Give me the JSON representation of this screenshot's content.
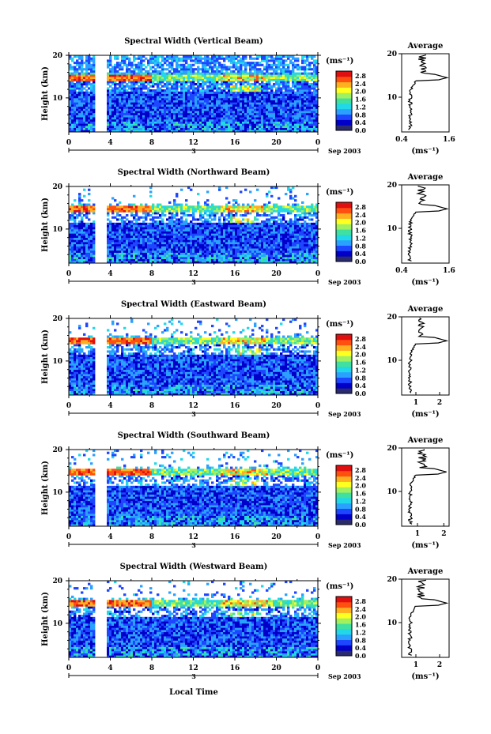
{
  "figure": {
    "time_label": "Local Time",
    "date_label": "Sep 2003",
    "day_label": "3",
    "unit_label": "(ms⁻¹)",
    "average_title": "Average",
    "height_label": "Height (km)"
  },
  "colorbar": {
    "ticks": [
      "2.8",
      "2.4",
      "2.0",
      "1.6",
      "1.2",
      "0.8",
      "0.4",
      "0.0"
    ],
    "colors": [
      "#2a2a6e",
      "#0000c8",
      "#1e46ff",
      "#2aa0ff",
      "#20d8e8",
      "#40e0a0",
      "#a0f060",
      "#ffff20",
      "#ffb020",
      "#ff5010",
      "#e01010"
    ]
  },
  "chart_data": [
    {
      "type": "heatmap",
      "title": "Spectral Width (Vertical Beam)",
      "xlabel": "",
      "ylabel": "Height (km)",
      "x_ticks": [
        "0",
        "4",
        "8",
        "12",
        "16",
        "20",
        "0"
      ],
      "y_ticks": [
        "20",
        "10"
      ],
      "xlim": [
        0,
        24
      ],
      "ylim": [
        2,
        20
      ],
      "colorbar_range": [
        0.0,
        2.8
      ],
      "average_profile": {
        "xlabel": "(ms⁻¹)",
        "x_ticks": [
          "0.4",
          "1.6"
        ],
        "xlim": [
          0.4,
          1.6
        ],
        "peak_height_km": 14.5,
        "peak_value": 1.55
      }
    },
    {
      "type": "heatmap",
      "title": "Spectral Width (Northward Beam)",
      "xlabel": "",
      "ylabel": "Height (km)",
      "x_ticks": [
        "0",
        "4",
        "8",
        "12",
        "16",
        "20",
        "0"
      ],
      "y_ticks": [
        "20",
        "10"
      ],
      "xlim": [
        0,
        24
      ],
      "ylim": [
        2,
        20
      ],
      "colorbar_range": [
        0.0,
        2.8
      ],
      "average_profile": {
        "xlabel": "(ms⁻¹)",
        "x_ticks": [
          "0.4",
          "1.6"
        ],
        "xlim": [
          0.4,
          1.6
        ],
        "peak_height_km": 14.5,
        "peak_value": 1.55
      }
    },
    {
      "type": "heatmap",
      "title": "Spectral Width (Eastward Beam)",
      "xlabel": "",
      "ylabel": "Height (km)",
      "x_ticks": [
        "0",
        "4",
        "8",
        "12",
        "16",
        "20",
        "0"
      ],
      "y_ticks": [
        "20",
        "10"
      ],
      "xlim": [
        0,
        24
      ],
      "ylim": [
        2,
        20
      ],
      "colorbar_range": [
        0.0,
        2.8
      ],
      "average_profile": {
        "xlabel": "(ms⁻¹)",
        "x_ticks": [
          "1",
          "2"
        ],
        "xlim": [
          0.4,
          2.4
        ],
        "peak_height_km": 14.5,
        "peak_value": 2.3
      }
    },
    {
      "type": "heatmap",
      "title": "Spectral Width (Southward Beam)",
      "xlabel": "",
      "ylabel": "Height (km)",
      "x_ticks": [
        "0",
        "4",
        "8",
        "12",
        "16",
        "20",
        "0"
      ],
      "y_ticks": [
        "20",
        "10"
      ],
      "xlim": [
        0,
        24
      ],
      "ylim": [
        2,
        20
      ],
      "colorbar_range": [
        0.0,
        2.8
      ],
      "average_profile": {
        "xlabel": "(ms⁻¹)",
        "x_ticks": [
          "1",
          "2"
        ],
        "xlim": [
          0.4,
          2.2
        ],
        "peak_height_km": 14.5,
        "peak_value": 2.1
      }
    },
    {
      "type": "heatmap",
      "title": "Spectral Width (Westward Beam)",
      "xlabel": "Local Time",
      "ylabel": "Height (km)",
      "x_ticks": [
        "0",
        "4",
        "8",
        "12",
        "16",
        "20",
        "0"
      ],
      "y_ticks": [
        "20",
        "10"
      ],
      "xlim": [
        0,
        24
      ],
      "ylim": [
        2,
        20
      ],
      "colorbar_range": [
        0.0,
        2.8
      ],
      "average_profile": {
        "xlabel": "(ms⁻¹)",
        "x_ticks": [
          "1",
          "2"
        ],
        "xlim": [
          0.4,
          2.4
        ],
        "peak_height_km": 14.5,
        "peak_value": 2.3
      }
    }
  ]
}
